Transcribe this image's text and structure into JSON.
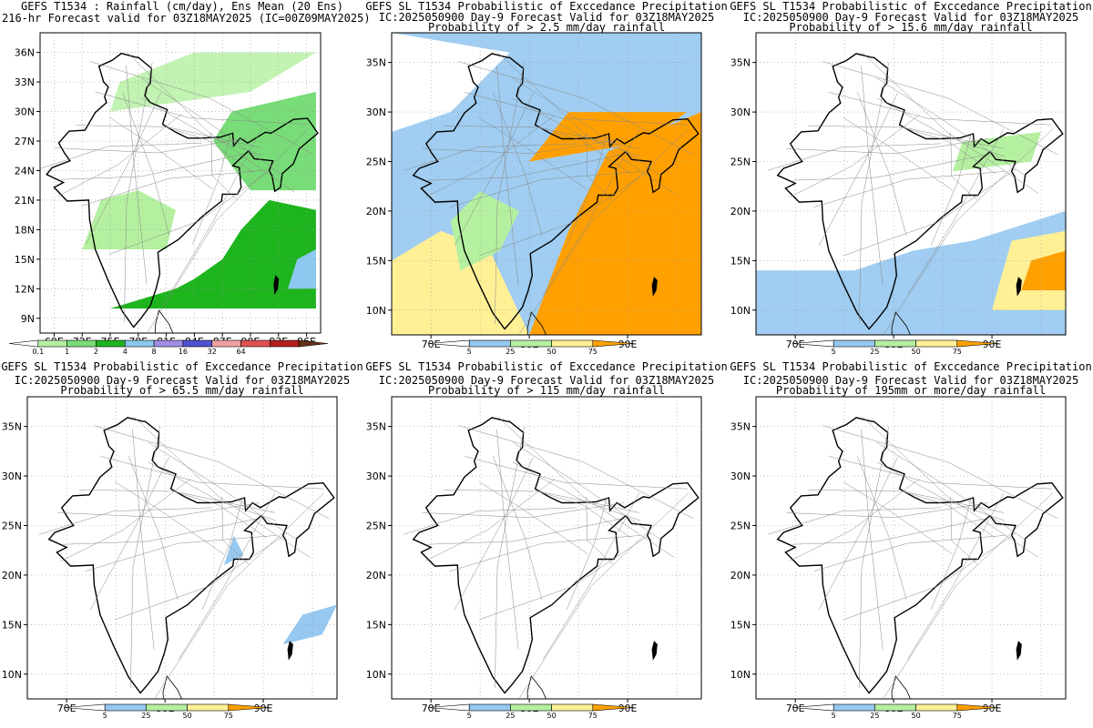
{
  "panels": [
    {
      "title": [
        "GEFS T1534 : Rainfall (cm/day), Ens Mean (20 Ens)",
        "216-hr Forecast valid for 03Z18MAY2025 (IC=00Z09MAY2025)"
      ],
      "xticks": [
        "69E",
        "72E",
        "75E",
        "78E",
        "81E",
        "84E",
        "87E",
        "90E",
        "93E",
        "96E"
      ],
      "yticks": [
        "36N",
        "33N",
        "30N",
        "27N",
        "24N",
        "21N",
        "18N",
        "15N",
        "12N",
        "9N"
      ],
      "colorbar": {
        "labels": [
          "0.1",
          "1",
          "2",
          "4",
          "8",
          "16",
          "32",
          "64"
        ],
        "colors": [
          "#ffffff",
          "#b4f0a0",
          "#78dc78",
          "#1eb41e",
          "#8cc8f0",
          "#a08ce6",
          "#5050d2",
          "#f0a0a0",
          "#e05050",
          "#b41e1e",
          "#643214"
        ]
      }
    },
    {
      "title": [
        "GEFS SL T1534 Probabilistic of Exccedance Precipitation",
        "IC:2025050900 Day-9 Forecast Valid for 03Z18MAY2025",
        "Probability of > 2.5 mm/day rainfall"
      ],
      "xticks": [
        "70E",
        "80E",
        "90E"
      ],
      "yticks": [
        "35N",
        "30N",
        "25N",
        "20N",
        "15N",
        "10N"
      ],
      "colorbar": {
        "labels": [
          "5",
          "25",
          "50",
          "75"
        ],
        "colors": [
          "#ffffff",
          "#96c8f0",
          "#b4f0a0",
          "#fff096",
          "#ffa000"
        ]
      }
    },
    {
      "title": [
        "GEFS SL T1534 Probabilistic of Exccedance Precipitation",
        "IC:2025050900 Day-9 Forecast Valid for 03Z18MAY2025",
        "Probability of > 15.6 mm/day rainfall"
      ],
      "xticks": [
        "70E",
        "80E",
        "90E"
      ],
      "yticks": [
        "35N",
        "30N",
        "25N",
        "20N",
        "15N",
        "10N"
      ],
      "colorbar": {
        "labels": [
          "5",
          "25",
          "50",
          "75"
        ],
        "colors": [
          "#ffffff",
          "#96c8f0",
          "#b4f0a0",
          "#fff096",
          "#ffa000"
        ]
      }
    },
    {
      "title": [
        "GEFS SL T1534 Probabilistic of Exccedance Precipitation",
        "IC:2025050900 Day-9 Forecast Valid for 03Z18MAY2025",
        "Probability of > 65.5 mm/day rainfall"
      ],
      "xticks": [
        "70E",
        "80E",
        "90E"
      ],
      "yticks": [
        "35N",
        "30N",
        "25N",
        "20N",
        "15N",
        "10N"
      ],
      "colorbar": {
        "labels": [
          "5",
          "25",
          "50",
          "75"
        ],
        "colors": [
          "#ffffff",
          "#96c8f0",
          "#b4f0a0",
          "#fff096",
          "#ffa000"
        ]
      }
    },
    {
      "title": [
        "GEFS SL T1534 Probabilistic of Exccedance Precipitation",
        "IC:2025050900 Day-9 Forecast Valid for 03Z18MAY2025",
        "Probability of > 115 mm/day rainfall"
      ],
      "xticks": [
        "70E",
        "80E",
        "90E"
      ],
      "yticks": [
        "35N",
        "30N",
        "25N",
        "20N",
        "15N",
        "10N"
      ],
      "colorbar": {
        "labels": [
          "5",
          "25",
          "50",
          "75"
        ],
        "colors": [
          "#ffffff",
          "#96c8f0",
          "#b4f0a0",
          "#fff096",
          "#ffa000"
        ]
      }
    },
    {
      "title": [
        "GEFS SL T1534 Probabilistic of Exccedance Precipitation",
        "IC:2025050900 Day-9 Forecast Valid for 03Z18MAY2025",
        "Probability of 195mm or more/day rainfall"
      ],
      "xticks": [
        "70E",
        "80E",
        "90E"
      ],
      "yticks": [
        "35N",
        "30N",
        "25N",
        "20N",
        "15N",
        "10N"
      ],
      "colorbar": {
        "labels": [
          "5",
          "25",
          "50",
          "75"
        ],
        "colors": [
          "#ffffff",
          "#96c8f0",
          "#b4f0a0",
          "#fff096",
          "#ffa000"
        ]
      }
    }
  ]
}
